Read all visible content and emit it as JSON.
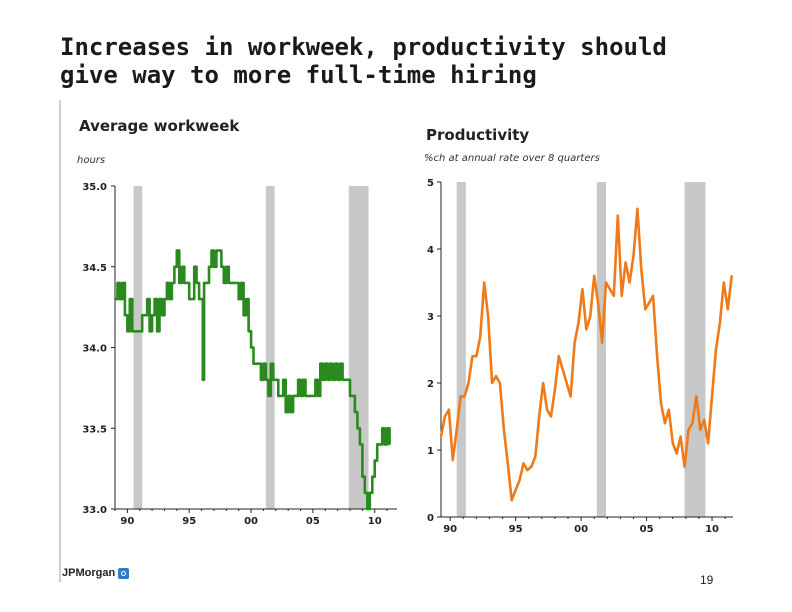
{
  "slide": {
    "title_line1": "Increases in workweek, productivity should",
    "title_line2": "give way to more full-time hiring",
    "logo_text": "JPMorgan",
    "page_number": "19"
  },
  "chart_data": [
    {
      "type": "line",
      "title": "Average workweek",
      "ylabel": "hours",
      "ylim": [
        33.0,
        35.0
      ],
      "yticks": [
        35.0,
        34.5,
        34.0,
        33.5,
        33.0
      ],
      "ytick_labels": [
        "35.0",
        "34.5",
        "34.0",
        "33.5",
        "33.0"
      ],
      "xlim": [
        1989.0,
        2011.8
      ],
      "xticks": [
        1990,
        1995,
        2000,
        2005,
        2010
      ],
      "xtick_labels": [
        "90",
        "95",
        "00",
        "05",
        "10"
      ],
      "line_color": "#2a8a1f",
      "recession_color": "#c8c8c8",
      "recessions": [
        [
          1990.5,
          1991.2
        ],
        [
          2001.2,
          2001.9
        ],
        [
          2007.9,
          2009.5
        ]
      ],
      "series": [
        {
          "name": "Average workweek",
          "x": [
            1989.0,
            1989.2,
            1989.4,
            1989.6,
            1989.8,
            1990.0,
            1990.2,
            1990.4,
            1990.6,
            1990.8,
            1991.0,
            1991.2,
            1991.4,
            1991.6,
            1991.8,
            1992.0,
            1992.2,
            1992.4,
            1992.6,
            1992.8,
            1993.0,
            1993.2,
            1993.4,
            1993.6,
            1993.8,
            1994.0,
            1994.2,
            1994.4,
            1994.6,
            1994.8,
            1995.0,
            1995.2,
            1995.4,
            1995.6,
            1995.8,
            1996.0,
            1996.1,
            1996.2,
            1996.4,
            1996.6,
            1996.8,
            1997.0,
            1997.2,
            1997.4,
            1997.6,
            1997.8,
            1998.0,
            1998.2,
            1998.4,
            1998.6,
            1998.8,
            1999.0,
            1999.2,
            1999.4,
            1999.6,
            1999.8,
            2000.0,
            2000.2,
            2000.4,
            2000.6,
            2000.8,
            2001.0,
            2001.2,
            2001.4,
            2001.6,
            2001.8,
            2002.0,
            2002.2,
            2002.4,
            2002.6,
            2002.8,
            2003.0,
            2003.2,
            2003.4,
            2003.6,
            2003.8,
            2004.0,
            2004.2,
            2004.4,
            2004.6,
            2004.8,
            2005.0,
            2005.2,
            2005.4,
            2005.6,
            2005.8,
            2006.0,
            2006.2,
            2006.4,
            2006.6,
            2006.8,
            2007.0,
            2007.2,
            2007.4,
            2007.6,
            2007.8,
            2008.0,
            2008.2,
            2008.4,
            2008.6,
            2008.8,
            2009.0,
            2009.2,
            2009.4,
            2009.6,
            2009.8,
            2010.0,
            2010.2,
            2010.4,
            2010.6,
            2010.8,
            2011.0,
            2011.2
          ],
          "values": [
            34.3,
            34.4,
            34.3,
            34.4,
            34.2,
            34.1,
            34.3,
            34.1,
            34.1,
            34.1,
            34.1,
            34.2,
            34.2,
            34.3,
            34.1,
            34.2,
            34.3,
            34.1,
            34.3,
            34.2,
            34.3,
            34.4,
            34.3,
            34.4,
            34.5,
            34.6,
            34.4,
            34.5,
            34.4,
            34.4,
            34.3,
            34.3,
            34.5,
            34.4,
            34.3,
            34.3,
            33.8,
            34.4,
            34.4,
            34.5,
            34.6,
            34.5,
            34.6,
            34.6,
            34.5,
            34.4,
            34.5,
            34.4,
            34.4,
            34.4,
            34.4,
            34.3,
            34.4,
            34.2,
            34.3,
            34.1,
            34.0,
            33.9,
            33.9,
            33.9,
            33.8,
            33.9,
            33.8,
            33.7,
            33.9,
            33.8,
            33.8,
            33.7,
            33.7,
            33.8,
            33.6,
            33.7,
            33.6,
            33.7,
            33.7,
            33.8,
            33.7,
            33.8,
            33.7,
            33.7,
            33.7,
            33.7,
            33.8,
            33.7,
            33.9,
            33.8,
            33.9,
            33.8,
            33.9,
            33.8,
            33.9,
            33.8,
            33.9,
            33.8,
            33.8,
            33.8,
            33.7,
            33.7,
            33.6,
            33.5,
            33.4,
            33.2,
            33.1,
            33.0,
            33.1,
            33.2,
            33.3,
            33.4,
            33.4,
            33.5,
            33.4,
            33.5,
            33.4
          ]
        }
      ]
    },
    {
      "type": "line",
      "title": "Productivity",
      "ylabel": "%ch at annual rate over 8 quarters",
      "ylim": [
        0,
        5
      ],
      "yticks": [
        5,
        4,
        3,
        2,
        1,
        0
      ],
      "ytick_labels": [
        "5",
        "4",
        "3",
        "2",
        "1",
        "0"
      ],
      "xlim": [
        1989.3,
        2011.6
      ],
      "xticks": [
        1990,
        1995,
        2000,
        2005,
        2010
      ],
      "xtick_labels": [
        "90",
        "95",
        "00",
        "05",
        "10"
      ],
      "line_color": "#f07a1a",
      "recession_color": "#c8c8c8",
      "recessions": [
        [
          1990.5,
          1991.2
        ],
        [
          2001.2,
          2001.9
        ],
        [
          2007.9,
          2009.5
        ]
      ],
      "series": [
        {
          "name": "Productivity",
          "x": [
            1989.3,
            1989.6,
            1989.9,
            1990.2,
            1990.5,
            1990.8,
            1991.1,
            1991.4,
            1991.7,
            1992.0,
            1992.3,
            1992.6,
            1992.9,
            1993.2,
            1993.5,
            1993.8,
            1994.1,
            1994.4,
            1994.7,
            1995.0,
            1995.3,
            1995.6,
            1995.9,
            1996.2,
            1996.5,
            1996.8,
            1997.1,
            1997.4,
            1997.7,
            1998.0,
            1998.3,
            1998.6,
            1998.9,
            1999.2,
            1999.5,
            1999.8,
            2000.1,
            2000.4,
            2000.7,
            2001.0,
            2001.3,
            2001.6,
            2001.9,
            2002.2,
            2002.5,
            2002.8,
            2003.1,
            2003.4,
            2003.7,
            2004.0,
            2004.3,
            2004.6,
            2004.9,
            2005.2,
            2005.5,
            2005.8,
            2006.1,
            2006.4,
            2006.7,
            2007.0,
            2007.3,
            2007.6,
            2007.9,
            2008.2,
            2008.5,
            2008.8,
            2009.1,
            2009.4,
            2009.7,
            2010.0,
            2010.3,
            2010.6,
            2010.9,
            2011.2,
            2011.5
          ],
          "values": [
            1.2,
            1.5,
            1.6,
            0.85,
            1.3,
            1.8,
            1.8,
            2.0,
            2.4,
            2.4,
            2.7,
            3.5,
            3.0,
            2.0,
            2.1,
            2.0,
            1.3,
            0.8,
            0.25,
            0.4,
            0.55,
            0.8,
            0.7,
            0.75,
            0.9,
            1.5,
            2.0,
            1.6,
            1.5,
            1.9,
            2.4,
            2.2,
            2.0,
            1.8,
            2.6,
            2.9,
            3.4,
            2.8,
            3.0,
            3.6,
            3.2,
            2.6,
            3.5,
            3.4,
            3.3,
            4.5,
            3.3,
            3.8,
            3.5,
            3.9,
            4.6,
            3.7,
            3.1,
            3.2,
            3.3,
            2.4,
            1.7,
            1.4,
            1.6,
            1.1,
            0.95,
            1.2,
            0.75,
            1.3,
            1.4,
            1.8,
            1.3,
            1.45,
            1.1,
            1.8,
            2.5,
            2.9,
            3.5,
            3.1,
            3.6
          ]
        }
      ]
    }
  ]
}
